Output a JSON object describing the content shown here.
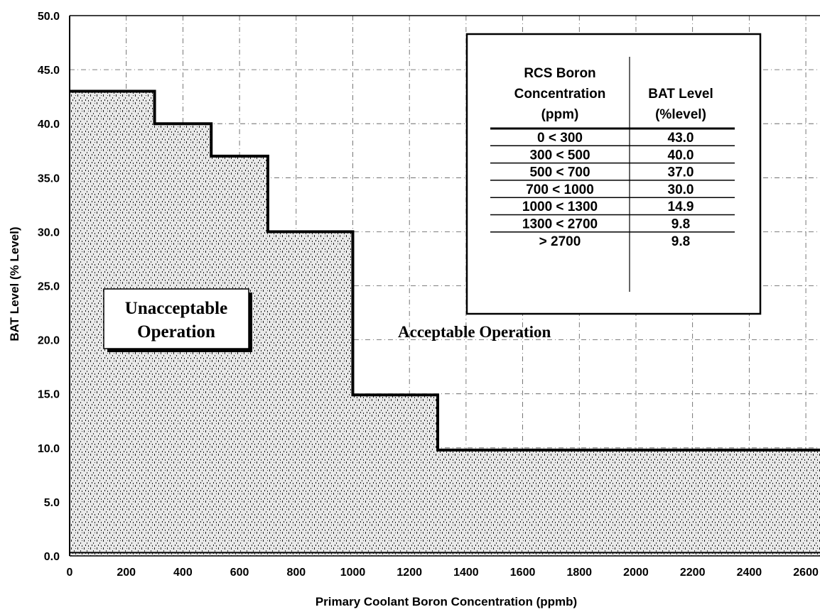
{
  "chart_data": {
    "type": "area",
    "xlabel": "Primary Coolant Boron Concentration (ppmb)",
    "ylabel": "BAT Level (% Level)",
    "xlim": [
      0,
      2650
    ],
    "ylim": [
      0,
      50
    ],
    "x_ticks": [
      "0",
      "200",
      "400",
      "600",
      "800",
      "1000",
      "1200",
      "1400",
      "1600",
      "1800",
      "2000",
      "2200",
      "2400",
      "2600"
    ],
    "y_ticks": [
      "0.0",
      "5.0",
      "10.0",
      "15.0",
      "20.0",
      "25.0",
      "30.0",
      "35.0",
      "40.0",
      "45.0",
      "50.0"
    ],
    "steps": [
      {
        "x0": 0,
        "x1": 300,
        "y": 43.0
      },
      {
        "x0": 300,
        "x1": 500,
        "y": 40.0
      },
      {
        "x0": 500,
        "x1": 700,
        "y": 37.0
      },
      {
        "x0": 700,
        "x1": 1000,
        "y": 30.0
      },
      {
        "x0": 1000,
        "x1": 1300,
        "y": 14.9
      },
      {
        "x0": 1300,
        "x1": 2650,
        "y": 9.8
      }
    ],
    "annotations": {
      "unacceptable": [
        "Unacceptable",
        "Operation"
      ],
      "acceptable": "Acceptable Operation"
    },
    "grid": true,
    "table": {
      "headers": [
        [
          "RCS Boron",
          "Concentration",
          "(ppm)"
        ],
        [
          "BAT Level",
          "(%level)"
        ]
      ],
      "rows": [
        [
          "0 < 300",
          "43.0"
        ],
        [
          "300 < 500",
          "40.0"
        ],
        [
          "500 < 700",
          "37.0"
        ],
        [
          "700 < 1000",
          "30.0"
        ],
        [
          "1000 < 1300",
          "14.9"
        ],
        [
          "1300 < 2700",
          "9.8"
        ],
        [
          "> 2700",
          "9.8"
        ]
      ]
    }
  }
}
